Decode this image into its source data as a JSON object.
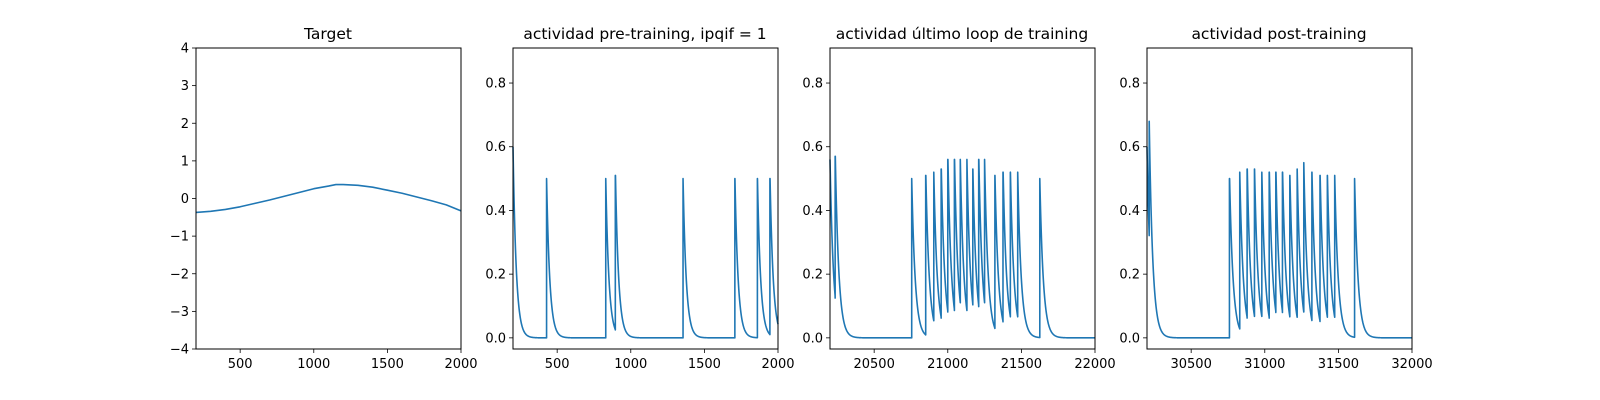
{
  "figure": {
    "background": "#ffffff",
    "line_color": "#1f77b4"
  },
  "chart_data": [
    {
      "type": "line",
      "title": "Target",
      "xlim": [
        200,
        2000
      ],
      "ylim": [
        -4,
        4
      ],
      "xticks": [
        500,
        1000,
        1500,
        2000
      ],
      "yticks": [
        -4,
        -3,
        -2,
        -1,
        0,
        1,
        2,
        3,
        4
      ],
      "grid": false,
      "series": [
        {
          "x": [
            200,
            300,
            400,
            500,
            600,
            700,
            800,
            900,
            1000,
            1100,
            1150,
            1200,
            1300,
            1400,
            1500,
            1600,
            1700,
            1800,
            1900,
            2000
          ],
          "y": [
            -0.37,
            -0.34,
            -0.29,
            -0.22,
            -0.13,
            -0.04,
            0.06,
            0.16,
            0.26,
            0.33,
            0.37,
            0.37,
            0.35,
            0.3,
            0.22,
            0.14,
            0.04,
            -0.06,
            -0.17,
            -0.33
          ]
        }
      ]
    },
    {
      "type": "line",
      "title": "actividad pre-training, ipqif = 1",
      "xlim": [
        200,
        2000
      ],
      "ylim": [
        -0.035,
        0.91
      ],
      "xticks": [
        500,
        1000,
        1500,
        2000
      ],
      "yticks": [
        0.0,
        0.2,
        0.4,
        0.6,
        0.8
      ],
      "grid": false,
      "spike_model": {
        "baseline": 0,
        "initial": 0.6,
        "decay_constant": 22,
        "spike_times": [
          428,
          830,
          895,
          1355,
          1707,
          1860,
          1945
        ],
        "spike_peaks": [
          0.5,
          0.5,
          0.51,
          0.5,
          0.5,
          0.5,
          0.5
        ]
      }
    },
    {
      "type": "line",
      "title": "actividad último loop de training",
      "xlim": [
        20200,
        22000
      ],
      "ylim": [
        -0.035,
        0.91
      ],
      "xticks": [
        20500,
        21000,
        21500,
        22000
      ],
      "yticks": [
        0.0,
        0.2,
        0.4,
        0.6,
        0.8
      ],
      "grid": false,
      "spike_model": {
        "baseline": 0,
        "initial": 0.56,
        "decay_constant": 24,
        "spike_times": [
          20235,
          20755,
          20850,
          20905,
          20955,
          21000,
          21045,
          21085,
          21130,
          21170,
          21210,
          21250,
          21320,
          21375,
          21425,
          21475,
          21625
        ],
        "spike_peaks": [
          0.57,
          0.5,
          0.51,
          0.52,
          0.53,
          0.56,
          0.56,
          0.56,
          0.56,
          0.53,
          0.56,
          0.56,
          0.51,
          0.52,
          0.52,
          0.52,
          0.5
        ]
      }
    },
    {
      "type": "line",
      "title": "actividad post-training",
      "xlim": [
        30200,
        32000
      ],
      "ylim": [
        -0.035,
        0.91
      ],
      "xticks": [
        30500,
        31000,
        31500,
        32000
      ],
      "yticks": [
        0.0,
        0.2,
        0.4,
        0.6,
        0.8
      ],
      "grid": false,
      "spike_model": {
        "baseline": 0,
        "initial": 0.6,
        "decay_constant": 24,
        "spike_times": [
          30215,
          30760,
          30830,
          30880,
          30930,
          30980,
          31030,
          31075,
          31120,
          31170,
          31220,
          31265,
          31320,
          31375,
          31425,
          31475,
          31610
        ],
        "spike_peaks": [
          0.68,
          0.5,
          0.52,
          0.53,
          0.53,
          0.52,
          0.52,
          0.52,
          0.52,
          0.51,
          0.53,
          0.55,
          0.52,
          0.51,
          0.51,
          0.51,
          0.5
        ]
      }
    }
  ]
}
